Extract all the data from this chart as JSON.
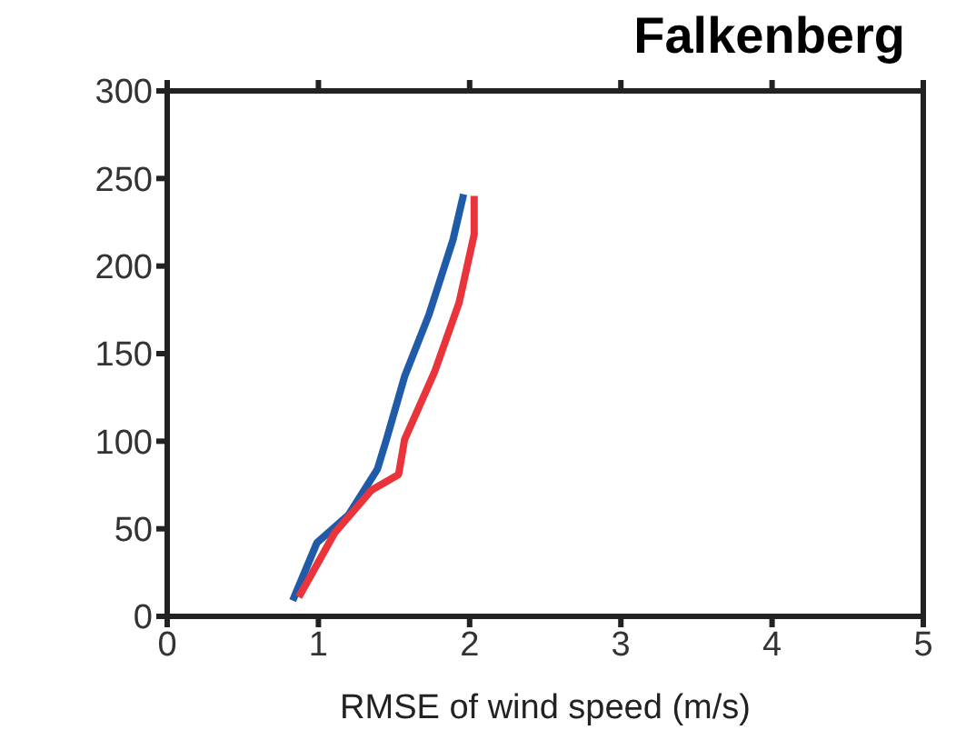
{
  "chart_data": {
    "type": "line",
    "title": "Falkenberg",
    "xlabel": "RMSE of wind speed (m/s)",
    "xlim": [
      0,
      5
    ],
    "xticks": [
      0,
      1,
      2,
      3,
      4,
      5
    ],
    "ylim": [
      0,
      300
    ],
    "yticks": [
      0,
      50,
      100,
      150,
      200,
      250,
      300
    ],
    "marker": "none",
    "line_style": "solid",
    "series": [
      {
        "color": "#1f5ba8",
        "x": [
          0.83,
          0.99,
          1.2,
          1.39,
          1.45,
          1.57,
          1.73,
          1.89,
          1.96
        ],
        "values": [
          9,
          42,
          58,
          84,
          101,
          137,
          172,
          215,
          241
        ]
      },
      {
        "color": "#e8343a",
        "x": [
          0.87,
          1.11,
          1.35,
          1.53,
          1.57,
          1.77,
          1.93,
          2.03,
          2.03
        ],
        "values": [
          11,
          48,
          72,
          81,
          101,
          140,
          179,
          218,
          240
        ]
      }
    ]
  }
}
